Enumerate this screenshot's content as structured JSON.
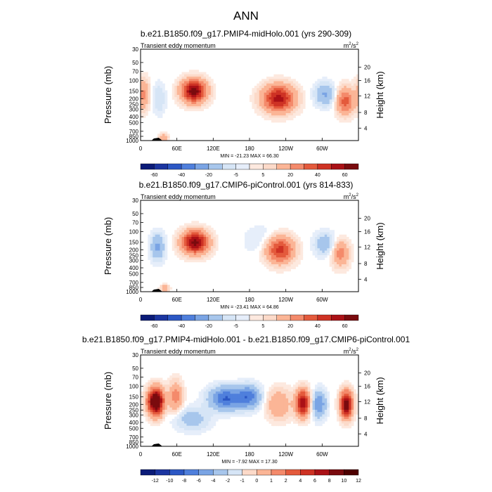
{
  "figure": {
    "title": "ANN"
  },
  "colors": {
    "pos_full": [
      "#fcdac9",
      "#fbb596",
      "#f48a6b",
      "#e45a3c",
      "#ce3224",
      "#aa1116",
      "#7a0b0e",
      "#4d0000"
    ],
    "neg_full": [
      "#d6e5f6",
      "#a7c6ec",
      "#7aa4e4",
      "#4f7fdc",
      "#2c57c4",
      "#1b35a0",
      "#0b1b78",
      "#000066"
    ]
  },
  "chart_data": [
    {
      "type": "contour",
      "title": "b.e21.B1850.f09_g17.PMIP4-midHolo.001 (yrs 290-309)",
      "left_string": "Transient eddy momentum",
      "units_base": "m",
      "units_exp1": "2",
      "units_mid": "/s",
      "units_exp2": "2",
      "ylabel": "Pressure (mb)",
      "ylabel_right": "Height (km)",
      "yticks": [
        "30",
        "50",
        "70",
        "100",
        "150",
        "200",
        "250",
        "300",
        "400",
        "500",
        "700",
        "850",
        "1000"
      ],
      "yticks_right": [
        "20",
        "16",
        "12",
        "8",
        "4"
      ],
      "xticks": [
        "0",
        "60E",
        "120E",
        "180",
        "120W",
        "60W"
      ],
      "min_label": "MIN = -21.23",
      "max_label": "MAX =  66.30",
      "colorbar_labels": [
        "-60",
        "-40",
        "-20",
        "-5",
        "5",
        "20",
        "40",
        "60"
      ],
      "blobs": [
        {
          "lon": 88,
          "p": 150,
          "amp": 66,
          "slon": 14,
          "sp": 0.3
        },
        {
          "lon": 228,
          "p": 200,
          "amp": 55,
          "slon": 18,
          "sp": 0.35
        },
        {
          "lon": 338,
          "p": 220,
          "amp": 35,
          "slon": 10,
          "sp": 0.35
        },
        {
          "lon": 5,
          "p": 170,
          "amp": 22,
          "slon": 7,
          "sp": 0.4
        },
        {
          "lon": 38,
          "p": 880,
          "amp": 20,
          "slon": 5,
          "sp": 0.1
        },
        {
          "lon": 305,
          "p": 170,
          "amp": -21,
          "slon": 12,
          "sp": 0.3
        },
        {
          "lon": 30,
          "p": 200,
          "amp": -10,
          "slon": 8,
          "sp": 0.4
        }
      ]
    },
    {
      "type": "contour",
      "title": "b.e21.B1850.f09_g17.CMIP6-piControl.001 (yrs 814-833)",
      "left_string": "Transient eddy momentum",
      "units_base": "m",
      "units_exp1": "2",
      "units_mid": "/s",
      "units_exp2": "2",
      "ylabel": "Pressure (mb)",
      "ylabel_right": "Height (km)",
      "yticks": [
        "30",
        "50",
        "70",
        "100",
        "150",
        "200",
        "250",
        "300",
        "400",
        "500",
        "700",
        "850",
        "1000"
      ],
      "yticks_right": [
        "20",
        "16",
        "12",
        "8",
        "4"
      ],
      "xticks": [
        "0",
        "60E",
        "120E",
        "180",
        "120W",
        "60W"
      ],
      "min_label": "MIN = -23.41",
      "max_label": "MAX =  64.86",
      "colorbar_labels": [
        "-60",
        "-40",
        "-20",
        "-5",
        "5",
        "20",
        "40",
        "60"
      ],
      "blobs": [
        {
          "lon": 90,
          "p": 150,
          "amp": 64,
          "slon": 15,
          "sp": 0.3
        },
        {
          "lon": 230,
          "p": 200,
          "amp": 45,
          "slon": 16,
          "sp": 0.35
        },
        {
          "lon": 330,
          "p": 230,
          "amp": 25,
          "slon": 10,
          "sp": 0.35
        },
        {
          "lon": 40,
          "p": 880,
          "amp": 18,
          "slon": 5,
          "sp": 0.1
        },
        {
          "lon": 28,
          "p": 180,
          "amp": -23,
          "slon": 8,
          "sp": 0.35
        },
        {
          "lon": 305,
          "p": 160,
          "amp": -18,
          "slon": 12,
          "sp": 0.3
        },
        {
          "lon": 200,
          "p": 140,
          "amp": -6,
          "slon": 20,
          "sp": 0.4
        }
      ]
    },
    {
      "type": "contour",
      "title": "b.e21.B1850.f09_g17.PMIP4-midHolo.001 - b.e21.B1850.f09_g17.CMIP6-piControl.001",
      "left_string": "Transient eddy momentum",
      "units_base": "m",
      "units_exp1": "2",
      "units_mid": "/s",
      "units_exp2": "2",
      "ylabel": "Pressure (mb)",
      "ylabel_right": "Height (km)",
      "yticks": [
        "30",
        "50",
        "70",
        "100",
        "150",
        "200",
        "250",
        "300",
        "400",
        "500",
        "700",
        "850",
        "1000"
      ],
      "yticks_right": [
        "20",
        "16",
        "12",
        "8",
        "4"
      ],
      "xticks": [
        "0",
        "60E",
        "120E",
        "180",
        "120W",
        "60W"
      ],
      "min_label": "MIN =  -7.92",
      "max_label": "MAX =  17.30",
      "colorbar_labels": [
        "-12",
        "-10",
        "-8",
        "-6",
        "-4",
        "-2",
        "-1",
        "0",
        "1",
        "2",
        "4",
        "6",
        "8",
        "10",
        "12"
      ],
      "blobs": [
        {
          "lon": 25,
          "p": 180,
          "amp": 17,
          "slon": 9,
          "sp": 0.35
        },
        {
          "lon": 268,
          "p": 190,
          "amp": 12,
          "slon": 8,
          "sp": 0.35
        },
        {
          "lon": 340,
          "p": 200,
          "amp": 14,
          "slon": 7,
          "sp": 0.35
        },
        {
          "lon": 58,
          "p": 150,
          "amp": 5,
          "slon": 8,
          "sp": 0.4
        },
        {
          "lon": 228,
          "p": 200,
          "amp": 4,
          "slon": 14,
          "sp": 0.4
        },
        {
          "lon": 140,
          "p": 160,
          "amp": -8,
          "slon": 18,
          "sp": 0.3
        },
        {
          "lon": 178,
          "p": 150,
          "amp": -7,
          "slon": 14,
          "sp": 0.3
        },
        {
          "lon": 295,
          "p": 200,
          "amp": -6,
          "slon": 8,
          "sp": 0.35
        },
        {
          "lon": 85,
          "p": 350,
          "amp": -3,
          "slon": 20,
          "sp": 0.3
        }
      ]
    }
  ]
}
